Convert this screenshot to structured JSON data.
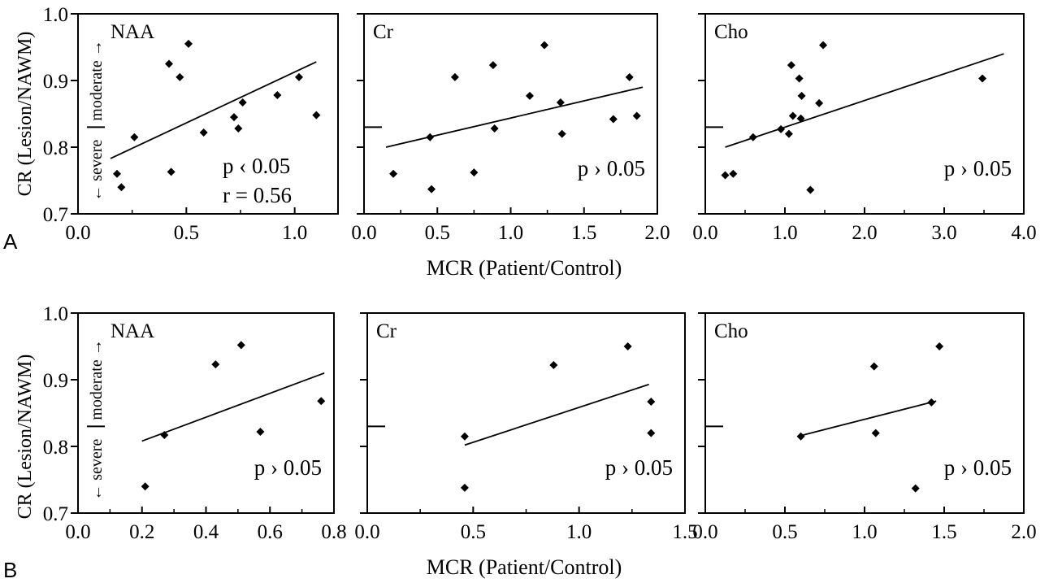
{
  "figure": {
    "row_labels": [
      "A",
      "B"
    ],
    "ylabel": "CR (Lesion/NAWM)",
    "xlabel": "MCR (Patient/Control)",
    "severity_labels": {
      "severe": "← severe",
      "moderate": "moderate →"
    },
    "y_tick_labels": [
      "0.7",
      "0.8",
      "0.9",
      "1.0"
    ]
  },
  "chart_data": [
    {
      "type": "scatter",
      "row": "A",
      "title": "NAA",
      "xlim": [
        0,
        1.2
      ],
      "ylim": [
        0.7,
        1.0
      ],
      "x_ticks": [
        0,
        0.5,
        1.0
      ],
      "x_tick_labels": [
        "0.0",
        "0.5",
        "1.0"
      ],
      "points": [
        [
          0.18,
          0.76
        ],
        [
          0.2,
          0.74
        ],
        [
          0.26,
          0.815
        ],
        [
          0.42,
          0.925
        ],
        [
          0.43,
          0.763
        ],
        [
          0.47,
          0.905
        ],
        [
          0.51,
          0.955
        ],
        [
          0.58,
          0.822
        ],
        [
          0.72,
          0.845
        ],
        [
          0.74,
          0.828
        ],
        [
          0.76,
          0.867
        ],
        [
          0.92,
          0.878
        ],
        [
          1.02,
          0.905
        ],
        [
          1.1,
          0.848
        ]
      ],
      "fit": [
        [
          0.15,
          0.783
        ],
        [
          1.1,
          0.928
        ]
      ],
      "annotations": [
        "p ‹ 0.05",
        "r = 0.56"
      ],
      "severity_boundary": true
    },
    {
      "type": "scatter",
      "row": "A",
      "title": "Cr",
      "xlim": [
        0,
        2.0
      ],
      "ylim": [
        0.7,
        1.0
      ],
      "x_ticks": [
        0,
        0.5,
        1.0,
        1.5,
        2.0
      ],
      "x_tick_labels": [
        "0.0",
        "0.5",
        "1.0",
        "1.5",
        "2.0"
      ],
      "points": [
        [
          0.2,
          0.76
        ],
        [
          0.45,
          0.815
        ],
        [
          0.46,
          0.737
        ],
        [
          0.62,
          0.905
        ],
        [
          0.75,
          0.762
        ],
        [
          0.88,
          0.923
        ],
        [
          0.89,
          0.828
        ],
        [
          1.13,
          0.877
        ],
        [
          1.23,
          0.953
        ],
        [
          1.34,
          0.867
        ],
        [
          1.35,
          0.82
        ],
        [
          1.7,
          0.842
        ],
        [
          1.81,
          0.905
        ],
        [
          1.86,
          0.847
        ]
      ],
      "fit": [
        [
          0.15,
          0.8
        ],
        [
          1.9,
          0.89
        ]
      ],
      "annotations": [
        "p › 0.05"
      ],
      "severity_boundary": true
    },
    {
      "type": "scatter",
      "row": "A",
      "title": "Cho",
      "xlim": [
        0,
        4.0
      ],
      "ylim": [
        0.7,
        1.0
      ],
      "x_ticks": [
        0,
        1.0,
        2.0,
        3.0,
        4.0
      ],
      "x_tick_labels": [
        "0.0",
        "1.0",
        "2.0",
        "3.0",
        "4.0"
      ],
      "points": [
        [
          0.25,
          0.758
        ],
        [
          0.35,
          0.76
        ],
        [
          0.6,
          0.815
        ],
        [
          0.95,
          0.827
        ],
        [
          1.05,
          0.82
        ],
        [
          1.08,
          0.923
        ],
        [
          1.1,
          0.847
        ],
        [
          1.18,
          0.903
        ],
        [
          1.2,
          0.843
        ],
        [
          1.21,
          0.877
        ],
        [
          1.32,
          0.736
        ],
        [
          1.43,
          0.866
        ],
        [
          1.48,
          0.953
        ],
        [
          3.48,
          0.903
        ]
      ],
      "fit": [
        [
          0.25,
          0.8
        ],
        [
          3.75,
          0.94
        ]
      ],
      "annotations": [
        "p › 0.05"
      ],
      "severity_boundary": true
    },
    {
      "type": "scatter",
      "row": "B",
      "title": "NAA",
      "xlim": [
        0,
        0.8
      ],
      "ylim": [
        0.7,
        1.0
      ],
      "x_ticks": [
        0,
        0.2,
        0.4,
        0.6,
        0.8
      ],
      "x_tick_labels": [
        "0.0",
        "0.2",
        "0.4",
        "0.6",
        "0.8"
      ],
      "points": [
        [
          0.21,
          0.74
        ],
        [
          0.27,
          0.817
        ],
        [
          0.43,
          0.923
        ],
        [
          0.51,
          0.952
        ],
        [
          0.57,
          0.822
        ],
        [
          0.76,
          0.868
        ]
      ],
      "fit": [
        [
          0.2,
          0.808
        ],
        [
          0.77,
          0.91
        ]
      ],
      "annotations": [
        "p › 0.05"
      ],
      "severity_boundary": true
    },
    {
      "type": "scatter",
      "row": "B",
      "title": "Cr",
      "xlim": [
        0,
        1.5
      ],
      "ylim": [
        0.7,
        1.0
      ],
      "x_ticks": [
        0,
        0.5,
        1.0,
        1.5
      ],
      "x_tick_labels": [
        "0.0",
        "0.5",
        "1.0",
        "1.5"
      ],
      "points": [
        [
          0.46,
          0.815
        ],
        [
          0.46,
          0.738
        ],
        [
          0.88,
          0.922
        ],
        [
          1.23,
          0.95
        ],
        [
          1.34,
          0.867
        ],
        [
          1.34,
          0.82
        ]
      ],
      "fit": [
        [
          0.46,
          0.802
        ],
        [
          1.33,
          0.893
        ]
      ],
      "annotations": [
        "p › 0.05"
      ],
      "severity_boundary": true
    },
    {
      "type": "scatter",
      "row": "B",
      "title": "Cho",
      "xlim": [
        0,
        2.0
      ],
      "ylim": [
        0.7,
        1.0
      ],
      "x_ticks": [
        0,
        0.5,
        1.0,
        1.5,
        2.0
      ],
      "x_tick_labels": [
        "0.0",
        "0.5",
        "1.0",
        "1.5",
        "2.0"
      ],
      "points": [
        [
          0.6,
          0.815
        ],
        [
          1.06,
          0.92
        ],
        [
          1.07,
          0.82
        ],
        [
          1.32,
          0.737
        ],
        [
          1.42,
          0.866
        ],
        [
          1.47,
          0.95
        ]
      ],
      "fit": [
        [
          0.58,
          0.815
        ],
        [
          1.45,
          0.868
        ]
      ],
      "annotations": [
        "p › 0.05"
      ],
      "severity_boundary": true
    }
  ]
}
